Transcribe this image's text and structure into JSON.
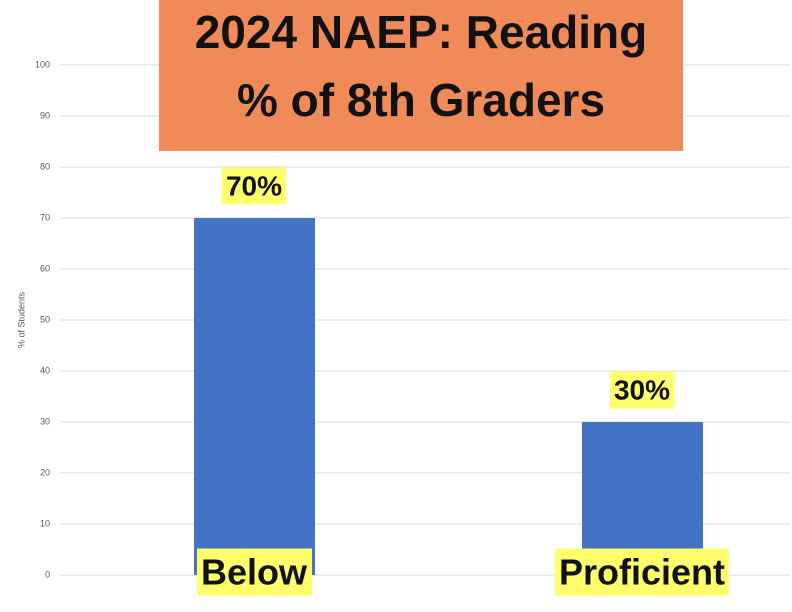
{
  "chart_data": {
    "type": "bar",
    "title": "2024 NAEP: Reading",
    "subtitle": "% of 8th Graders",
    "y_label": "% of Students",
    "categories": [
      "Below",
      "Proficient"
    ],
    "values": [
      70,
      30
    ],
    "value_labels": [
      "70%",
      "30%"
    ],
    "color": "#4472c4",
    "ylim": [
      0,
      100
    ],
    "yticks": [
      0,
      10,
      20,
      30,
      40,
      50,
      60,
      70,
      80,
      90,
      100
    ],
    "grid": true
  }
}
